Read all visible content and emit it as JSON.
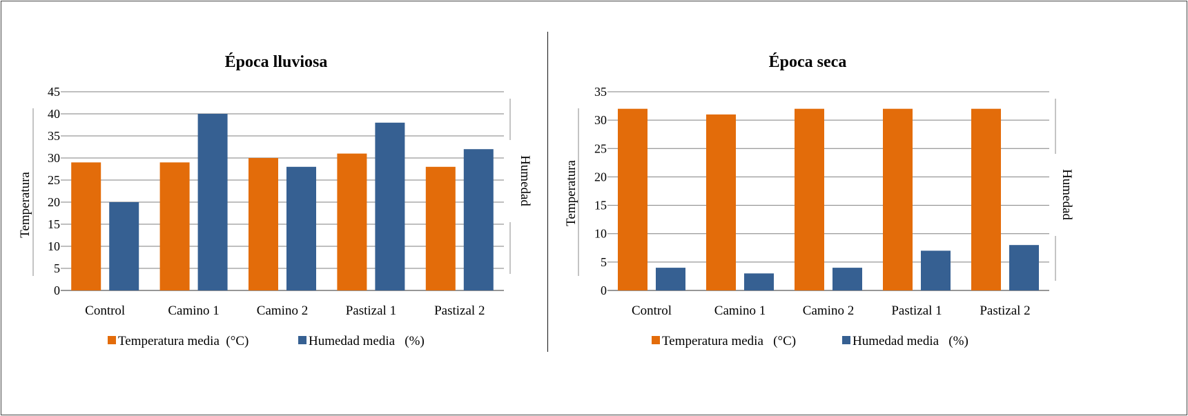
{
  "colors": {
    "temperature": "#e36c0a",
    "humidity": "#366092",
    "grid": "#7f7f7f",
    "text": "#000000"
  },
  "chart_data": [
    {
      "type": "bar",
      "title": "Época lluviosa",
      "categories": [
        "Control",
        "Camino 1",
        "Camino 2",
        "Pastizal 1",
        "Pastizal 2"
      ],
      "series": [
        {
          "name": "Temperatura media  (°C)",
          "values": [
            29,
            29,
            30,
            31,
            28
          ]
        },
        {
          "name": "Humedad media   (%)",
          "values": [
            20,
            40,
            28,
            38,
            32
          ]
        }
      ],
      "ylabel": "Temperatura",
      "y2label": "Humedad",
      "ylim": [
        0,
        45
      ],
      "yticks": [
        0,
        5,
        10,
        15,
        20,
        25,
        30,
        35,
        40,
        45
      ],
      "grid": true,
      "legend_position": "bottom"
    },
    {
      "type": "bar",
      "title": "Época seca",
      "categories": [
        "Control",
        "Camino 1",
        "Camino 2",
        "Pastizal 1",
        "Pastizal 2"
      ],
      "series": [
        {
          "name": "Temperatura media   (°C)",
          "values": [
            32,
            31,
            32,
            32,
            32
          ]
        },
        {
          "name": "Humedad media   (%)",
          "values": [
            4,
            3,
            4,
            7,
            8
          ]
        }
      ],
      "ylabel": "Temperatura",
      "y2label": "Humedad",
      "ylim": [
        0,
        35
      ],
      "yticks": [
        0,
        5,
        10,
        15,
        20,
        25,
        30,
        35
      ],
      "grid": true,
      "legend_position": "bottom"
    }
  ]
}
